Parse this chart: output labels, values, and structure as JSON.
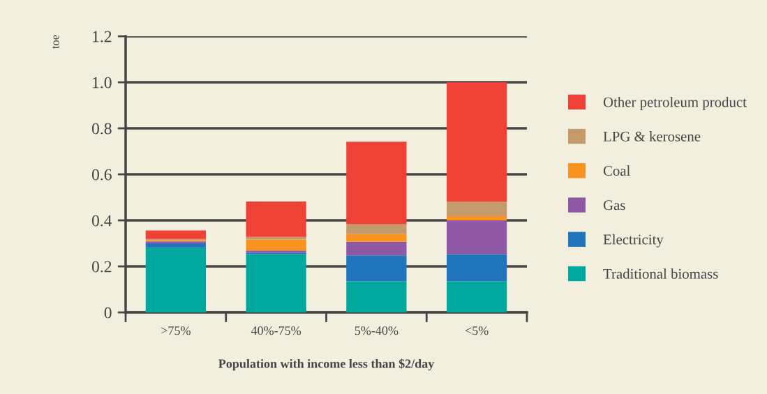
{
  "chart_data": {
    "type": "bar",
    "stacked": true,
    "ylabel": "toe",
    "xlabel": "Population with income less than $2/day",
    "categories": [
      ">75%",
      "40%-75%",
      "5%-40%",
      "<5%"
    ],
    "series": [
      {
        "name": "Traditional biomass",
        "color": "#00a79d",
        "values": [
          0.28,
          0.253,
          0.135,
          0.135
        ]
      },
      {
        "name": "Electricity",
        "color": "#1f74bb",
        "values": [
          0.02,
          0.006,
          0.113,
          0.118
        ]
      },
      {
        "name": "Gas",
        "color": "#8e58a5",
        "values": [
          0.008,
          0.01,
          0.059,
          0.147
        ]
      },
      {
        "name": "Coal",
        "color": "#f7931e",
        "values": [
          0.006,
          0.048,
          0.034,
          0.018
        ]
      },
      {
        "name": "LPG & kerosene",
        "color": "#c49a6c",
        "values": [
          0.005,
          0.011,
          0.042,
          0.064
        ]
      },
      {
        "name": "Other petroleum product",
        "color": "#ef4136",
        "values": [
          0.037,
          0.154,
          0.359,
          0.518
        ]
      }
    ],
    "ylim": [
      0,
      1.2
    ],
    "yticks": [
      0,
      0.2,
      0.4,
      0.6,
      0.8,
      {
        "value": 1,
        "label": "1.0"
      },
      1.2
    ],
    "grid": "y",
    "legend": "right"
  }
}
